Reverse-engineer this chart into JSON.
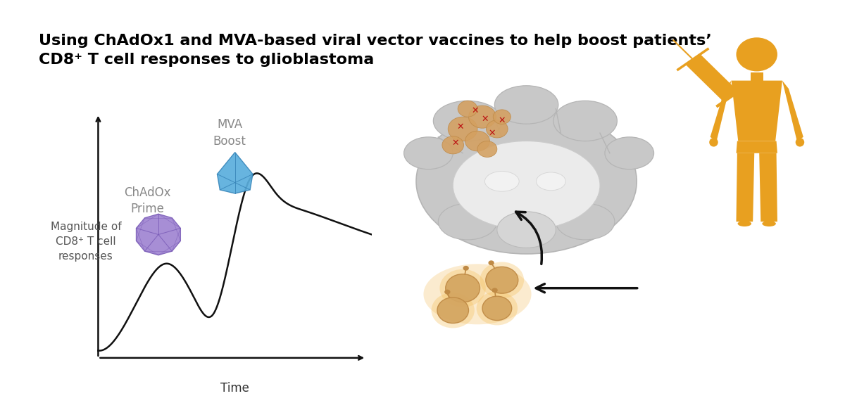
{
  "title_line1": "Using ChAdOx1 and MVA-based viral vector vaccines to help boost patients’",
  "title_line2": "CD8⁺ T cell responses to glioblastoma",
  "title_fontsize": 16,
  "title_fontweight": "bold",
  "bg_color": "#ffffff",
  "ylabel": "Magnitude of\nCD8⁺ T cell\nresponses",
  "xlabel": "Time",
  "curve_color": "#111111",
  "curve_linewidth": 1.8,
  "chadox_label": "ChAdOx\nPrime",
  "mva_label": "MVA\nBoost",
  "label_color": "#888888",
  "label_fontsize": 12,
  "axis_color": "#111111",
  "axis_linewidth": 1.8,
  "ylabel_fontsize": 11,
  "xlabel_fontsize": 12,
  "human_color": "#E8A020",
  "syringe_color": "#E8A020",
  "xmark_color": "#AA1111",
  "tcell_body_color": "#D4A56A",
  "tcell_glow_color": "#F5C060",
  "arrow_color": "#111111"
}
